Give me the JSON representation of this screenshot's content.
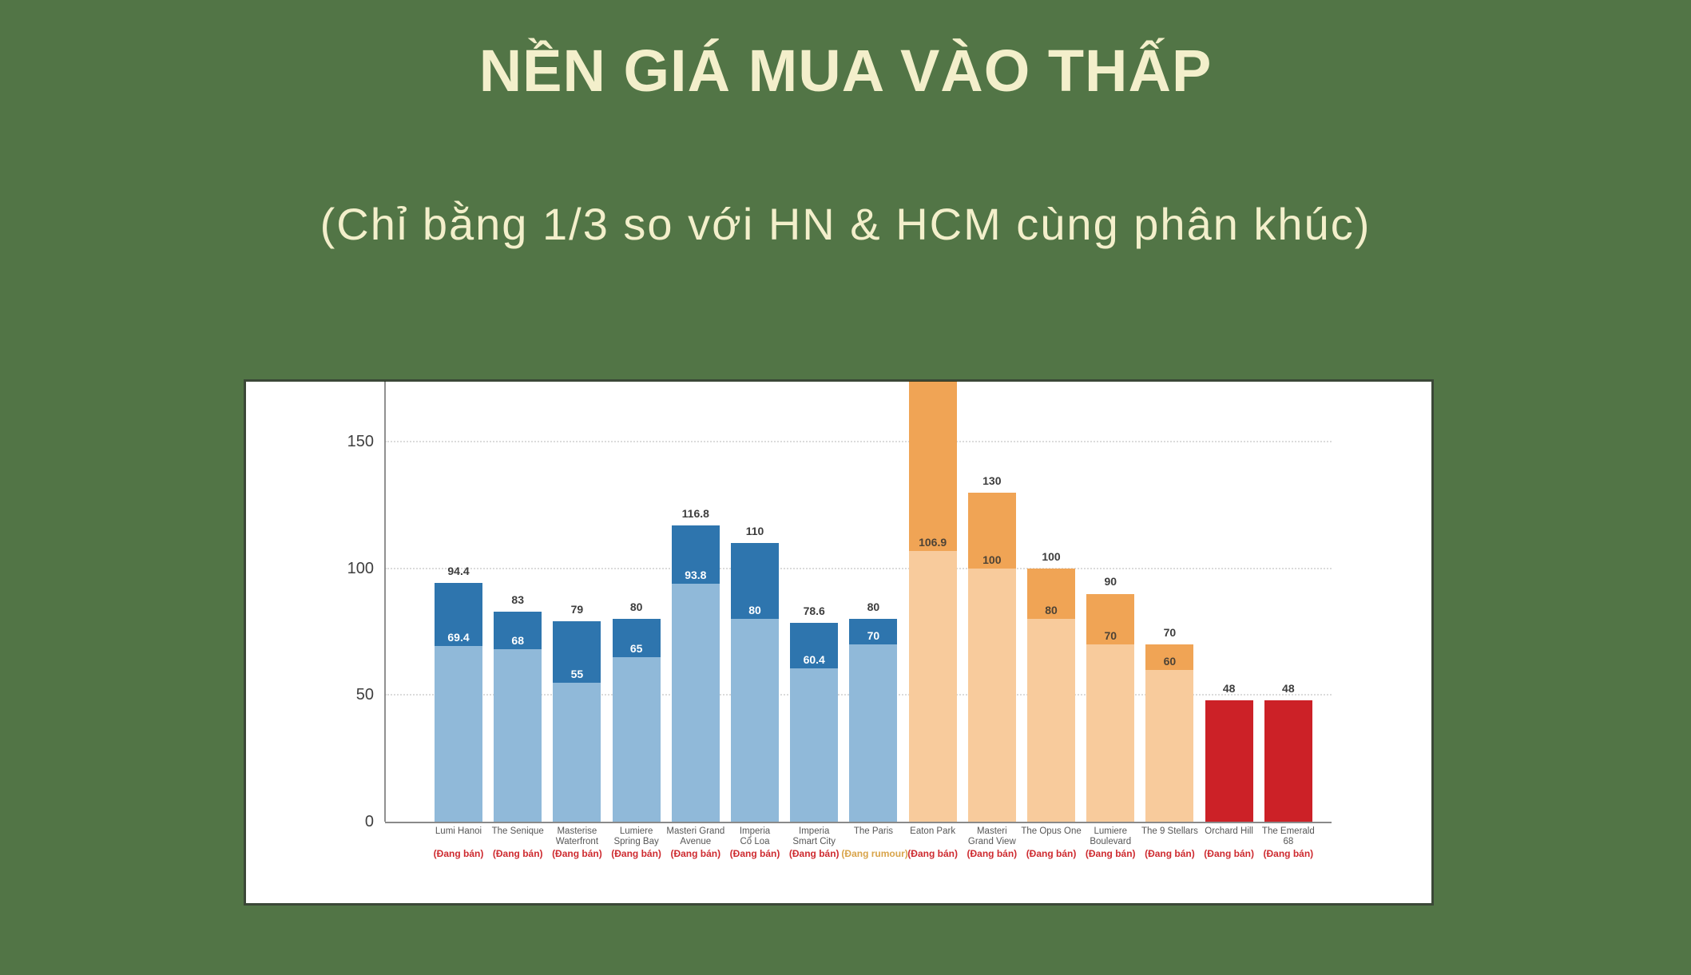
{
  "title": "NỀN GIÁ MUA VÀO THẤP",
  "subtitle": "(Chỉ bằng 1/3 so với HN & HCM cùng phân khúc)",
  "colors": {
    "background": "#527546",
    "heading_text": "#F3EFCB",
    "panel_bg": "#FFFFFF",
    "hanoi_light": "#90B9D9",
    "hanoi_dark": "#2E75AE",
    "hcm_light": "#F8CB9C",
    "hcm_dark": "#F0A455",
    "red": "#CC2127",
    "status_ban_text": "#CE2B30",
    "status_rumour_text": "#D9A44A",
    "grid": "#DBDBDB",
    "axis": "#909090",
    "ytick_text": "#3F3F3F",
    "value_label_text": "#3D3D3D",
    "xlabel_text": "#575757",
    "inside_label_on_blue": "#FFFFFF",
    "inside_label_on_orange": "#4D4336"
  },
  "chart_data": {
    "type": "bar",
    "variant": "stacked-range-columns",
    "title": "",
    "xlabel": "",
    "ylabel": "",
    "ylim": [
      0,
      174
    ],
    "yticks": [
      0,
      50,
      100,
      150
    ],
    "gridlines": [
      50,
      100,
      150
    ],
    "grid_style": "dotted horizontal",
    "legend": "none",
    "groups": {
      "hanoi": "blue stacked bars (light = up to low price, dark = low-to-high price range)",
      "hcm": "orange stacked bars (light = up to low price, dark = low-to-high price range)",
      "red": "solid red single-value bars"
    },
    "bars": [
      {
        "name": [
          "Lumi Hanoi"
        ],
        "status": "(Đang bán)",
        "status_type": "ban",
        "group": "hanoi",
        "low": 69.4,
        "high": 94.4,
        "low_label": "69.4",
        "high_label": "94.4",
        "clipped": false
      },
      {
        "name": [
          "The Senique"
        ],
        "status": "(Đang bán)",
        "status_type": "ban",
        "group": "hanoi",
        "low": 68,
        "high": 83,
        "low_label": "68",
        "high_label": "83",
        "clipped": false
      },
      {
        "name": [
          "Masterise",
          "Waterfront"
        ],
        "status": "(Đang bán)",
        "status_type": "ban",
        "group": "hanoi",
        "low": 55,
        "high": 79,
        "low_label": "55",
        "high_label": "79",
        "clipped": false
      },
      {
        "name": [
          "Lumiere",
          "Spring Bay"
        ],
        "status": "(Đang bán)",
        "status_type": "ban",
        "group": "hanoi",
        "low": 65,
        "high": 80,
        "low_label": "65",
        "high_label": "80",
        "clipped": false
      },
      {
        "name": [
          "Masteri Grand",
          "Avenue"
        ],
        "status": "(Đang bán)",
        "status_type": "ban",
        "group": "hanoi",
        "low": 93.8,
        "high": 116.8,
        "low_label": "93.8",
        "high_label": "116.8",
        "clipped": false
      },
      {
        "name": [
          "Imperia",
          "Cổ Loa"
        ],
        "status": "(Đang bán)",
        "status_type": "ban",
        "group": "hanoi",
        "low": 80,
        "high": 110,
        "low_label": "80",
        "high_label": "110",
        "clipped": false
      },
      {
        "name": [
          "Imperia",
          "Smart City"
        ],
        "status": "(Đang bán)",
        "status_type": "ban",
        "group": "hanoi",
        "low": 60.4,
        "high": 78.6,
        "low_label": "60.4",
        "high_label": "78.6",
        "clipped": false
      },
      {
        "name": [
          "The Paris"
        ],
        "status": "(Đang rumour)",
        "status_type": "rumour",
        "group": "hanoi",
        "low": 70,
        "high": 80,
        "low_label": "70",
        "high_label": "80",
        "clipped": false
      },
      {
        "name": [
          "Eaton Park"
        ],
        "status": "(Đang bán)",
        "status_type": "ban",
        "group": "hcm",
        "low": 106.9,
        "high": null,
        "low_label": "106.9",
        "high_label": "",
        "clipped": true,
        "note": "bar exceeds top of y-axis; upper value not shown"
      },
      {
        "name": [
          "Masteri",
          "Grand View"
        ],
        "status": "(Đang bán)",
        "status_type": "ban",
        "group": "hcm",
        "low": 100,
        "high": 130,
        "low_label": "100",
        "high_label": "130",
        "clipped": false
      },
      {
        "name": [
          "The Opus One"
        ],
        "status": "(Đang bán)",
        "status_type": "ban",
        "group": "hcm",
        "low": 80,
        "high": 100,
        "low_label": "80",
        "high_label": "100",
        "clipped": false
      },
      {
        "name": [
          "Lumiere",
          "Boulevard"
        ],
        "status": "(Đang bán)",
        "status_type": "ban",
        "group": "hcm",
        "low": 70,
        "high": 90,
        "low_label": "70",
        "high_label": "90",
        "clipped": false
      },
      {
        "name": [
          "The 9 Stellars"
        ],
        "status": "(Đang bán)",
        "status_type": "ban",
        "group": "hcm",
        "low": 60,
        "high": 70,
        "low_label": "60",
        "high_label": "70",
        "clipped": false
      },
      {
        "name": [
          "Orchard Hill"
        ],
        "status": "(Đang bán)",
        "status_type": "ban",
        "group": "red",
        "low": null,
        "high": 48,
        "low_label": "",
        "high_label": "48",
        "clipped": false
      },
      {
        "name": [
          "The Emerald 68"
        ],
        "status": "(Đang bán)",
        "status_type": "ban",
        "group": "red",
        "low": null,
        "high": 48,
        "low_label": "",
        "high_label": "48",
        "clipped": false
      }
    ]
  }
}
